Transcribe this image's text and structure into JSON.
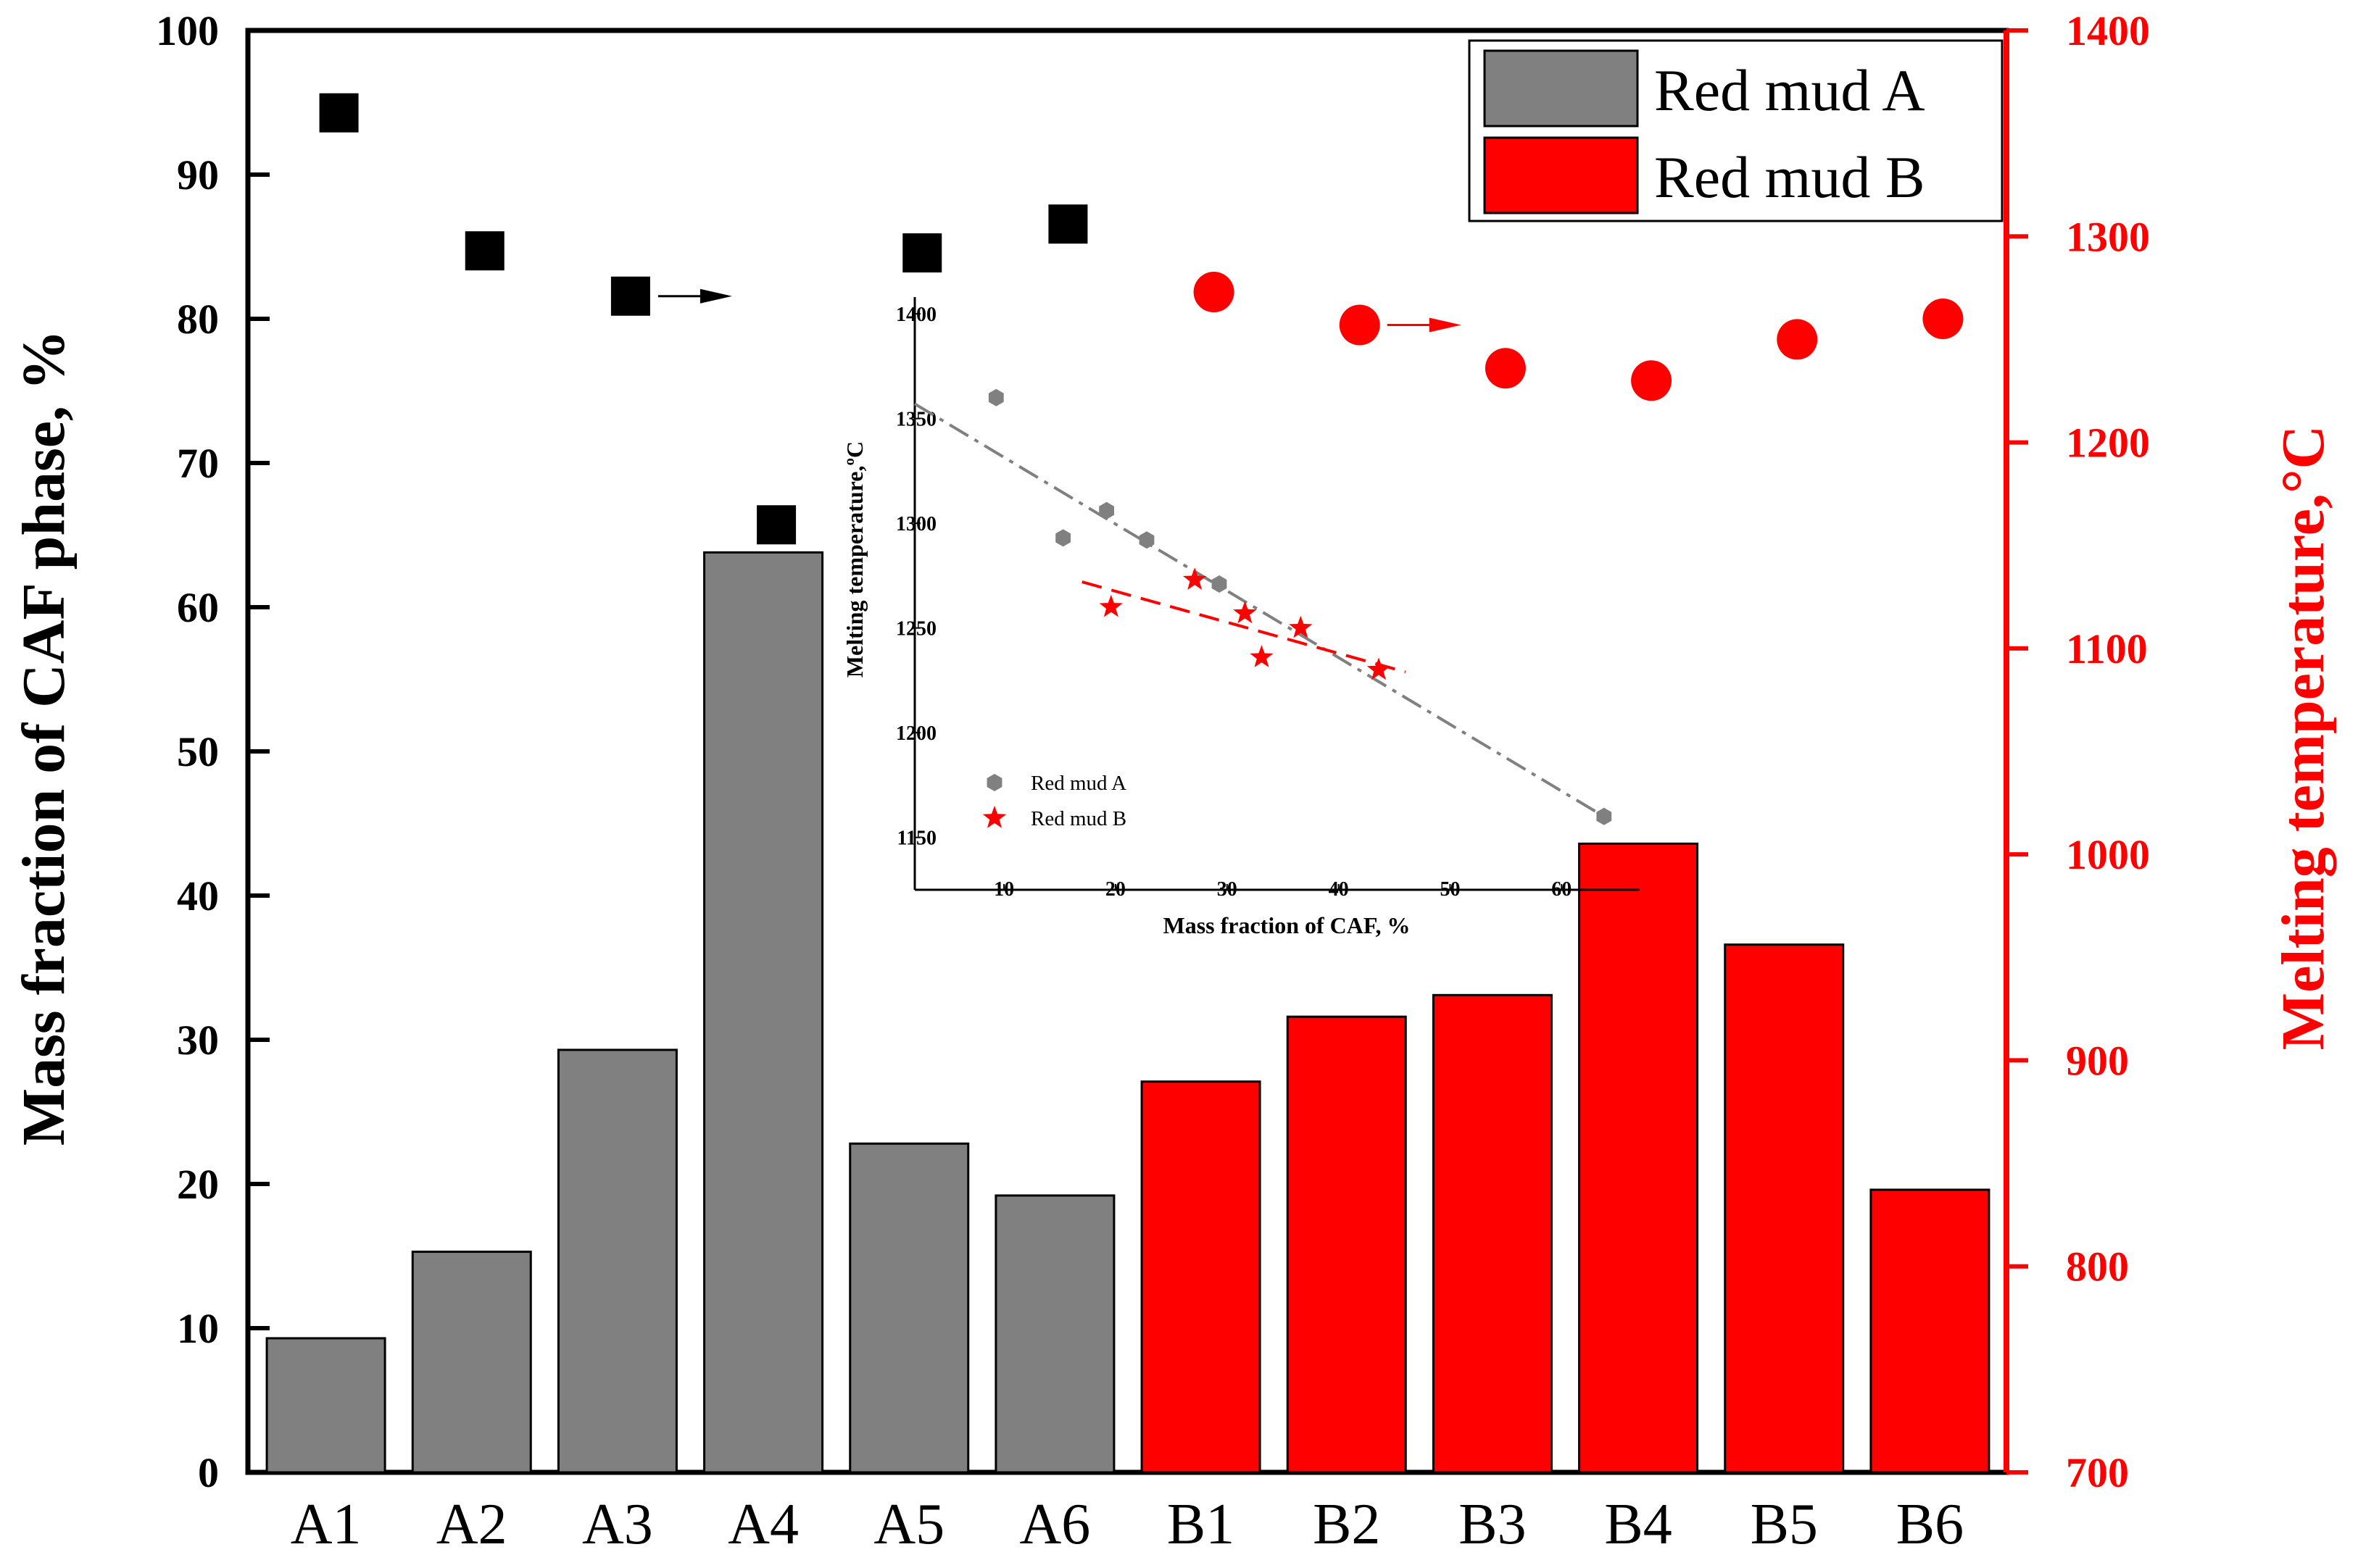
{
  "chart_data": [
    {
      "type": "bar",
      "role": "main",
      "categories": [
        "A1",
        "A2",
        "A3",
        "A4",
        "A5",
        "A6",
        "B1",
        "B2",
        "B3",
        "B4",
        "B5",
        "B6"
      ],
      "series": [
        {
          "name": "Red mud A",
          "color": "#808080",
          "values": [
            9.3,
            15.3,
            29.3,
            63.8,
            22.8,
            19.2,
            null,
            null,
            null,
            null,
            null,
            null
          ]
        },
        {
          "name": "Red mud B",
          "color": "#ff0000",
          "values": [
            null,
            null,
            null,
            null,
            null,
            null,
            27.1,
            31.6,
            33.1,
            43.6,
            36.6,
            19.6
          ]
        }
      ],
      "scatter_series": [
        {
          "name": "Melting temperature (Red mud A)",
          "marker": "square",
          "color": "#000000",
          "axis": "right",
          "values": [
            1360,
            1293,
            1271,
            1160,
            1292,
            1306
          ]
        },
        {
          "name": "Melting temperature (Red mud B)",
          "marker": "circle",
          "color": "#ff0000",
          "axis": "right",
          "values": [
            1273,
            1257,
            1236,
            1230,
            1250,
            1260
          ]
        }
      ],
      "arrows": [
        {
          "series": "Melting temperature (Red mud A)",
          "from_index": 2,
          "color": "#000000"
        },
        {
          "series": "Melting temperature (Red mud B)",
          "from_index": 7,
          "color": "#ff0000"
        }
      ],
      "ylabel": "Mass fraction of CAF phase, %",
      "ylim": [
        0,
        100
      ],
      "yticks": [
        0,
        10,
        20,
        30,
        40,
        50,
        60,
        70,
        80,
        90,
        100
      ],
      "y2label": "Melting temperature,°C",
      "y2lim": [
        700,
        1400
      ],
      "y2ticks": [
        700,
        800,
        900,
        1000,
        1100,
        1200,
        1300,
        1400
      ],
      "legend_position": "top-right",
      "legend": [
        {
          "label": "Red mud A",
          "color": "#808080"
        },
        {
          "label": "Red mud B",
          "color": "#ff0000"
        }
      ]
    },
    {
      "type": "scatter",
      "role": "inset",
      "xlabel": "Mass fraction of CAF, %",
      "ylabel": "Melting temperature,ºC",
      "xlim": [
        2,
        67
      ],
      "ylim": [
        1125,
        1408
      ],
      "xticks": [
        10,
        20,
        30,
        40,
        50,
        60
      ],
      "yticks": [
        1150,
        1200,
        1250,
        1300,
        1350,
        1400
      ],
      "legend_position": "bottom-left",
      "series": [
        {
          "name": "Red mud A",
          "marker": "hexagon",
          "color": "#808080",
          "points": [
            [
              9.3,
              1360
            ],
            [
              15.3,
              1293
            ],
            [
              19.2,
              1306
            ],
            [
              22.8,
              1292
            ],
            [
              29.3,
              1271
            ],
            [
              63.8,
              1160
            ]
          ],
          "fit": {
            "style": "dash-dot",
            "color": "#808080",
            "from": [
              2,
              1357
            ],
            "to": [
              63.8,
              1160
            ]
          }
        },
        {
          "name": "Red mud B",
          "marker": "star",
          "color": "#ff0000",
          "points": [
            [
              19.6,
              1260
            ],
            [
              27.1,
              1273
            ],
            [
              31.6,
              1257
            ],
            [
              33.1,
              1236
            ],
            [
              36.6,
              1250
            ],
            [
              43.6,
              1230
            ]
          ],
          "fit": {
            "style": "dash",
            "color": "#ff0000",
            "from": [
              17,
              1272
            ],
            "to": [
              46,
              1229
            ]
          }
        }
      ]
    }
  ]
}
